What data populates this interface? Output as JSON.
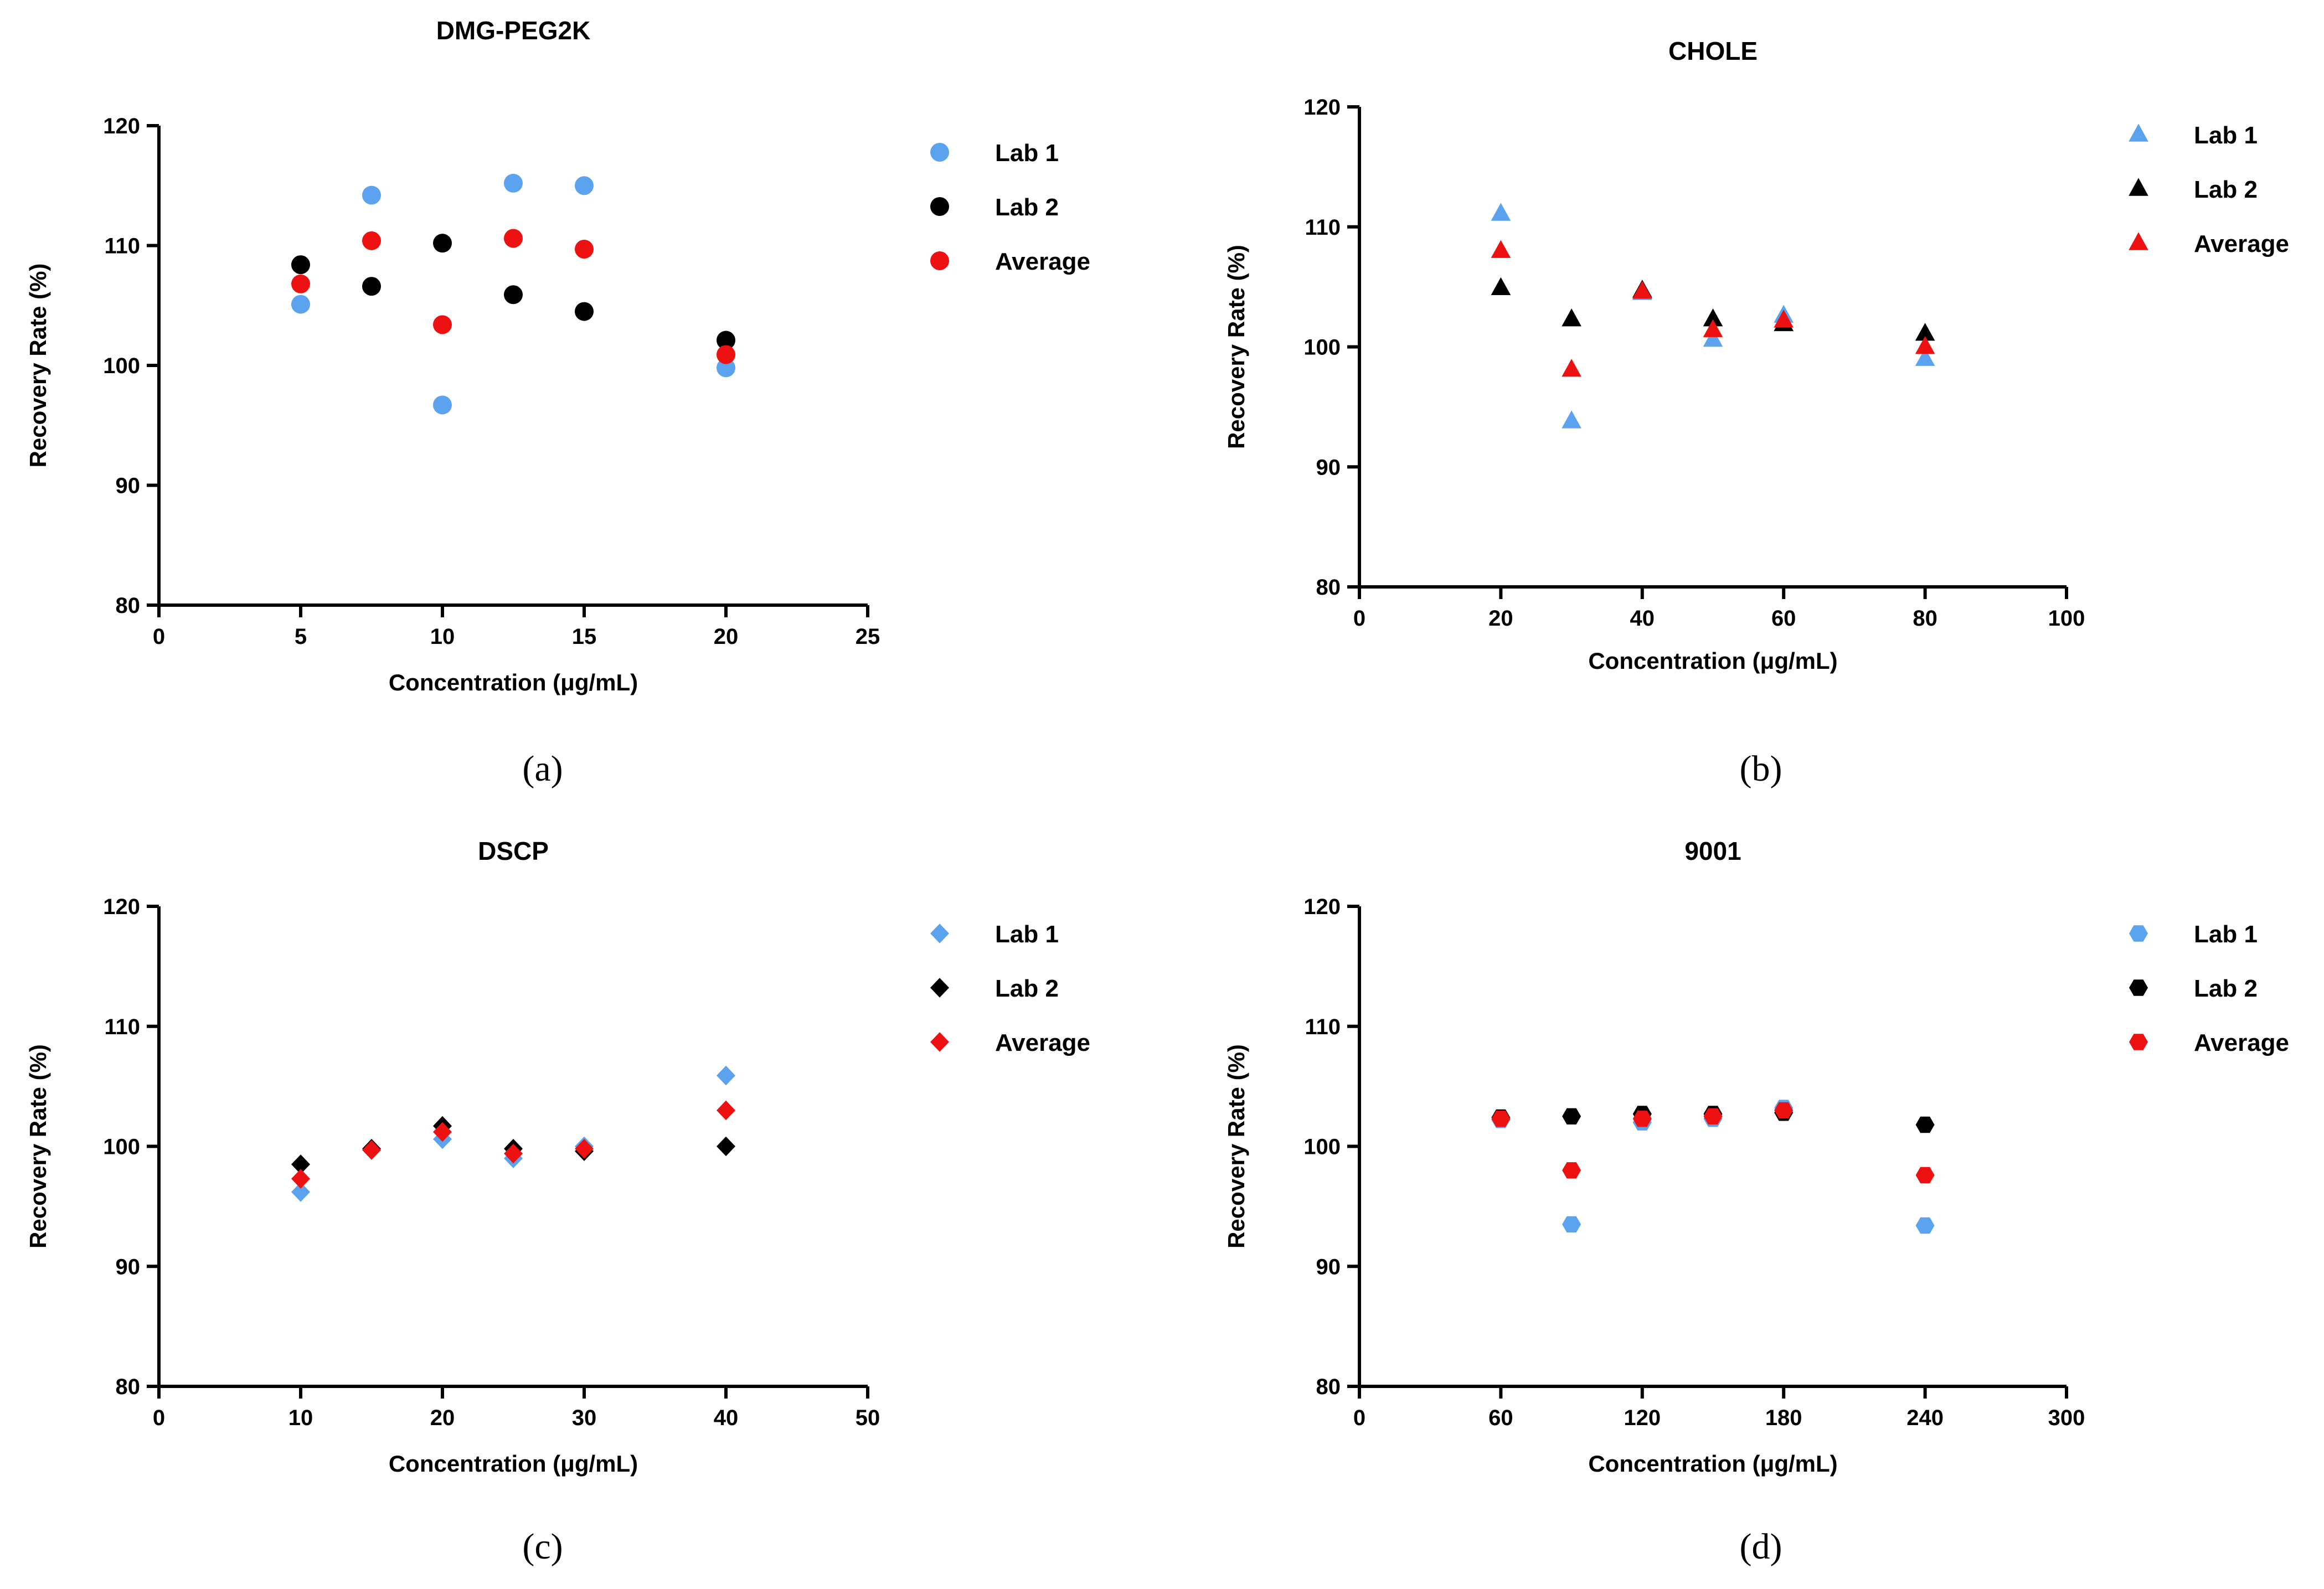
{
  "colors": {
    "lab1": "#5ba3ee",
    "lab2": "#000000",
    "average": "#ee1111"
  },
  "chart_data": [
    {
      "type": "scatter",
      "panel_label": "(a)",
      "title": "DMG-PEG2K",
      "xlabel": "Concentration (μg/mL)",
      "ylabel": "Recovery Rate (%)",
      "xlim": [
        0,
        25
      ],
      "ylim": [
        80,
        120
      ],
      "xticks": [
        0,
        5,
        10,
        15,
        20,
        25
      ],
      "yticks": [
        80,
        90,
        100,
        110,
        120
      ],
      "grid": false,
      "legend": "top-right",
      "marker": "circle",
      "series": [
        {
          "name": "Lab 1",
          "color_key": "lab1",
          "x": [
            5,
            7.5,
            10,
            12.5,
            15,
            20
          ],
          "values": [
            105.1,
            114.2,
            96.7,
            115.2,
            115.0,
            99.8
          ]
        },
        {
          "name": "Lab 2",
          "color_key": "lab2",
          "x": [
            5,
            7.5,
            10,
            12.5,
            15,
            20
          ],
          "values": [
            108.4,
            106.6,
            110.2,
            105.9,
            104.5,
            102.1
          ]
        },
        {
          "name": "Average",
          "color_key": "average",
          "x": [
            5,
            7.5,
            10,
            12.5,
            15,
            20
          ],
          "values": [
            106.8,
            110.4,
            103.4,
            110.6,
            109.7,
            100.9
          ]
        }
      ]
    },
    {
      "type": "scatter",
      "panel_label": "(b)",
      "title": "CHOLE",
      "xlabel": "Concentration (μg/mL)",
      "ylabel": "Recovery Rate (%)",
      "xlim": [
        0,
        100
      ],
      "ylim": [
        80,
        120
      ],
      "xticks": [
        0,
        20,
        40,
        60,
        80,
        100
      ],
      "yticks": [
        80,
        90,
        100,
        110,
        120
      ],
      "grid": false,
      "legend": "top-right",
      "marker": "triangle",
      "series": [
        {
          "name": "Lab 1",
          "color_key": "lab1",
          "x": [
            20,
            30,
            40,
            50,
            60,
            80
          ],
          "values": [
            111.1,
            93.8,
            104.5,
            100.6,
            102.6,
            99.0
          ]
        },
        {
          "name": "Lab 2",
          "color_key": "lab2",
          "x": [
            20,
            30,
            40,
            50,
            60,
            80
          ],
          "values": [
            104.9,
            102.3,
            104.7,
            102.3,
            101.9,
            101.1
          ]
        },
        {
          "name": "Average",
          "color_key": "average",
          "x": [
            20,
            30,
            40,
            50,
            60,
            80
          ],
          "values": [
            108.0,
            98.1,
            104.6,
            101.4,
            102.2,
            100.0
          ]
        }
      ]
    },
    {
      "type": "scatter",
      "panel_label": "(c)",
      "title": "DSCP",
      "xlabel": "Concentration (μg/mL)",
      "ylabel": "Recovery Rate (%)",
      "xlim": [
        0,
        50
      ],
      "ylim": [
        80,
        120
      ],
      "xticks": [
        0,
        10,
        20,
        30,
        40,
        50
      ],
      "yticks": [
        80,
        90,
        100,
        110,
        120
      ],
      "grid": false,
      "legend": "top-right",
      "marker": "diamond",
      "series": [
        {
          "name": "Lab 1",
          "color_key": "lab1",
          "x": [
            10,
            15,
            20,
            25,
            30,
            40
          ],
          "values": [
            96.2,
            99.7,
            100.6,
            99.0,
            100.0,
            105.9
          ]
        },
        {
          "name": "Lab 2",
          "color_key": "lab2",
          "x": [
            10,
            15,
            20,
            25,
            30,
            40
          ],
          "values": [
            98.5,
            99.8,
            101.7,
            99.8,
            99.6,
            100.0
          ]
        },
        {
          "name": "Average",
          "color_key": "average",
          "x": [
            10,
            15,
            20,
            25,
            30,
            40
          ],
          "values": [
            97.3,
            99.7,
            101.2,
            99.4,
            99.8,
            103.0
          ]
        }
      ]
    },
    {
      "type": "scatter",
      "panel_label": "(d)",
      "title": "9001",
      "xlabel": "Concentration (μg/mL)",
      "ylabel": "Recovery Rate (%)",
      "xlim": [
        0,
        300
      ],
      "ylim": [
        80,
        120
      ],
      "xticks": [
        0,
        60,
        120,
        180,
        240,
        300
      ],
      "yticks": [
        80,
        90,
        100,
        110,
        120
      ],
      "grid": false,
      "legend": "top-right",
      "marker": "hexagon",
      "series": [
        {
          "name": "Lab 1",
          "color_key": "lab1",
          "x": [
            60,
            90,
            120,
            150,
            180,
            240
          ],
          "values": [
            102.2,
            93.5,
            102.0,
            102.3,
            103.2,
            93.4
          ]
        },
        {
          "name": "Lab 2",
          "color_key": "lab2",
          "x": [
            60,
            90,
            120,
            150,
            180,
            240
          ],
          "values": [
            102.4,
            102.5,
            102.7,
            102.7,
            102.8,
            101.8
          ]
        },
        {
          "name": "Average",
          "color_key": "average",
          "x": [
            60,
            90,
            120,
            150,
            180,
            240
          ],
          "values": [
            102.3,
            98.0,
            102.3,
            102.5,
            103.0,
            97.6
          ]
        }
      ]
    }
  ]
}
